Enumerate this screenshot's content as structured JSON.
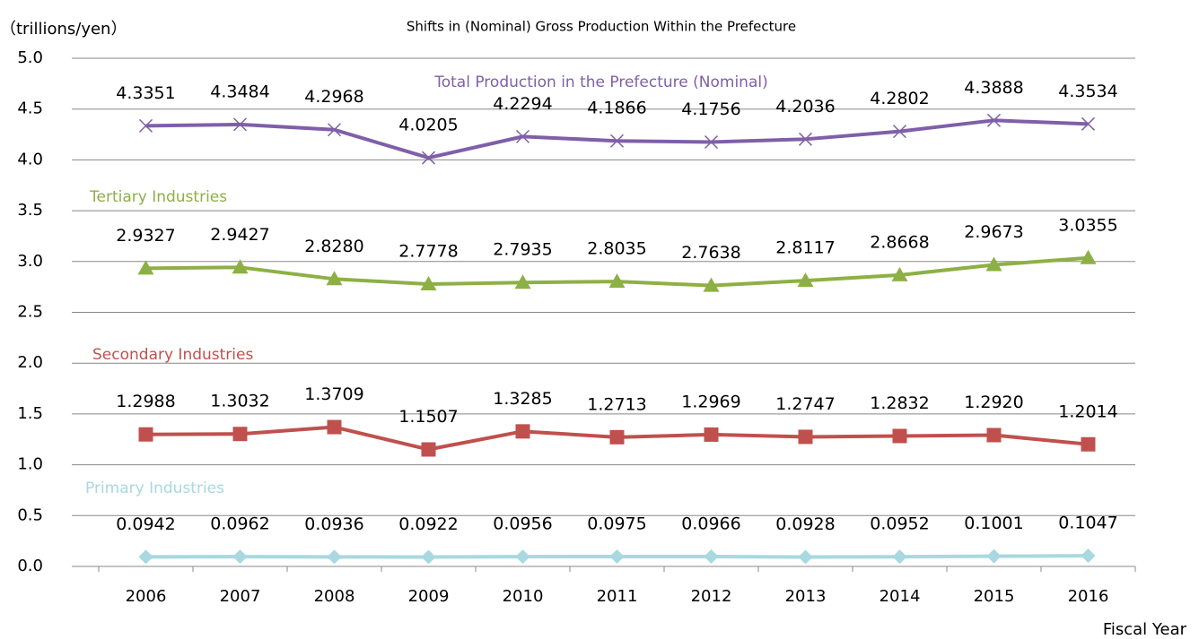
{
  "chart_data": {
    "type": "line",
    "title": "Shifts in (Nominal) Gross Production Within the Prefecture",
    "y_label": "（trillions/yen）",
    "x_label": "Fiscal Year",
    "categories": [
      "2006",
      "2007",
      "2008",
      "2009",
      "2010",
      "2011",
      "2012",
      "2013",
      "2014",
      "2015",
      "2016"
    ],
    "ylim": [
      0,
      5
    ],
    "yticks": [
      {
        "value": 0,
        "label": "0.0"
      },
      0.5,
      {
        "value": 1,
        "label": "1.0"
      },
      1.5,
      {
        "value": 2,
        "label": "2.0"
      },
      2.5,
      {
        "value": 3,
        "label": "3.0"
      },
      3.5,
      {
        "value": 4,
        "label": "4.0"
      },
      4.5,
      {
        "value": 5,
        "label": "5.0"
      }
    ],
    "grid": true,
    "series": [
      {
        "name": "Total Production in the Prefecture (Nominal)",
        "color": "#7f5fa8",
        "marker": "x",
        "values": [
          4.3351,
          4.3484,
          4.2968,
          4.0205,
          4.2294,
          4.1866,
          4.1756,
          4.2036,
          4.2802,
          4.3888,
          4.3534
        ],
        "value_labels": [
          "4.3351",
          "4.3484",
          "4.2968",
          "4.0205",
          "4.2294",
          "4.1866",
          "4.1756",
          "4.2036",
          "4.2802",
          "4.3888",
          "4.3534"
        ]
      },
      {
        "name": "Tertiary Industries",
        "color": "#8db045",
        "marker": "triangle",
        "values": [
          2.9327,
          2.9427,
          2.828,
          2.7778,
          2.7935,
          2.8035,
          2.7638,
          2.8117,
          2.8668,
          2.9673,
          3.0355
        ],
        "value_labels": [
          "2.9327",
          "2.9427",
          "2.8280",
          "2.7778",
          "2.7935",
          "2.8035",
          "2.7638",
          "2.8117",
          "2.8668",
          "2.9673",
          "3.0355"
        ]
      },
      {
        "name": "Secondary Industries",
        "color": "#c0504d",
        "marker": "square",
        "values": [
          1.2988,
          1.3032,
          1.3709,
          1.1507,
          1.3285,
          1.2713,
          1.2969,
          1.2747,
          1.2832,
          1.292,
          1.2014
        ],
        "value_labels": [
          "1.2988",
          "1.3032",
          "1.3709",
          "1.1507",
          "1.3285",
          "1.2713",
          "1.2969",
          "1.2747",
          "1.2832",
          "1.2920",
          "1.2014"
        ]
      },
      {
        "name": "Primary Industries",
        "color": "#a8d8e0",
        "marker": "diamond",
        "values": [
          0.0942,
          0.0962,
          0.0936,
          0.0922,
          0.0956,
          0.0975,
          0.0966,
          0.0928,
          0.0952,
          0.1001,
          0.1047
        ],
        "value_labels": [
          "0.0942",
          "0.0962",
          "0.0936",
          "0.0922",
          "0.0956",
          "0.0975",
          "0.0966",
          "0.0928",
          "0.0952",
          "0.1001",
          "0.1047"
        ]
      }
    ]
  }
}
